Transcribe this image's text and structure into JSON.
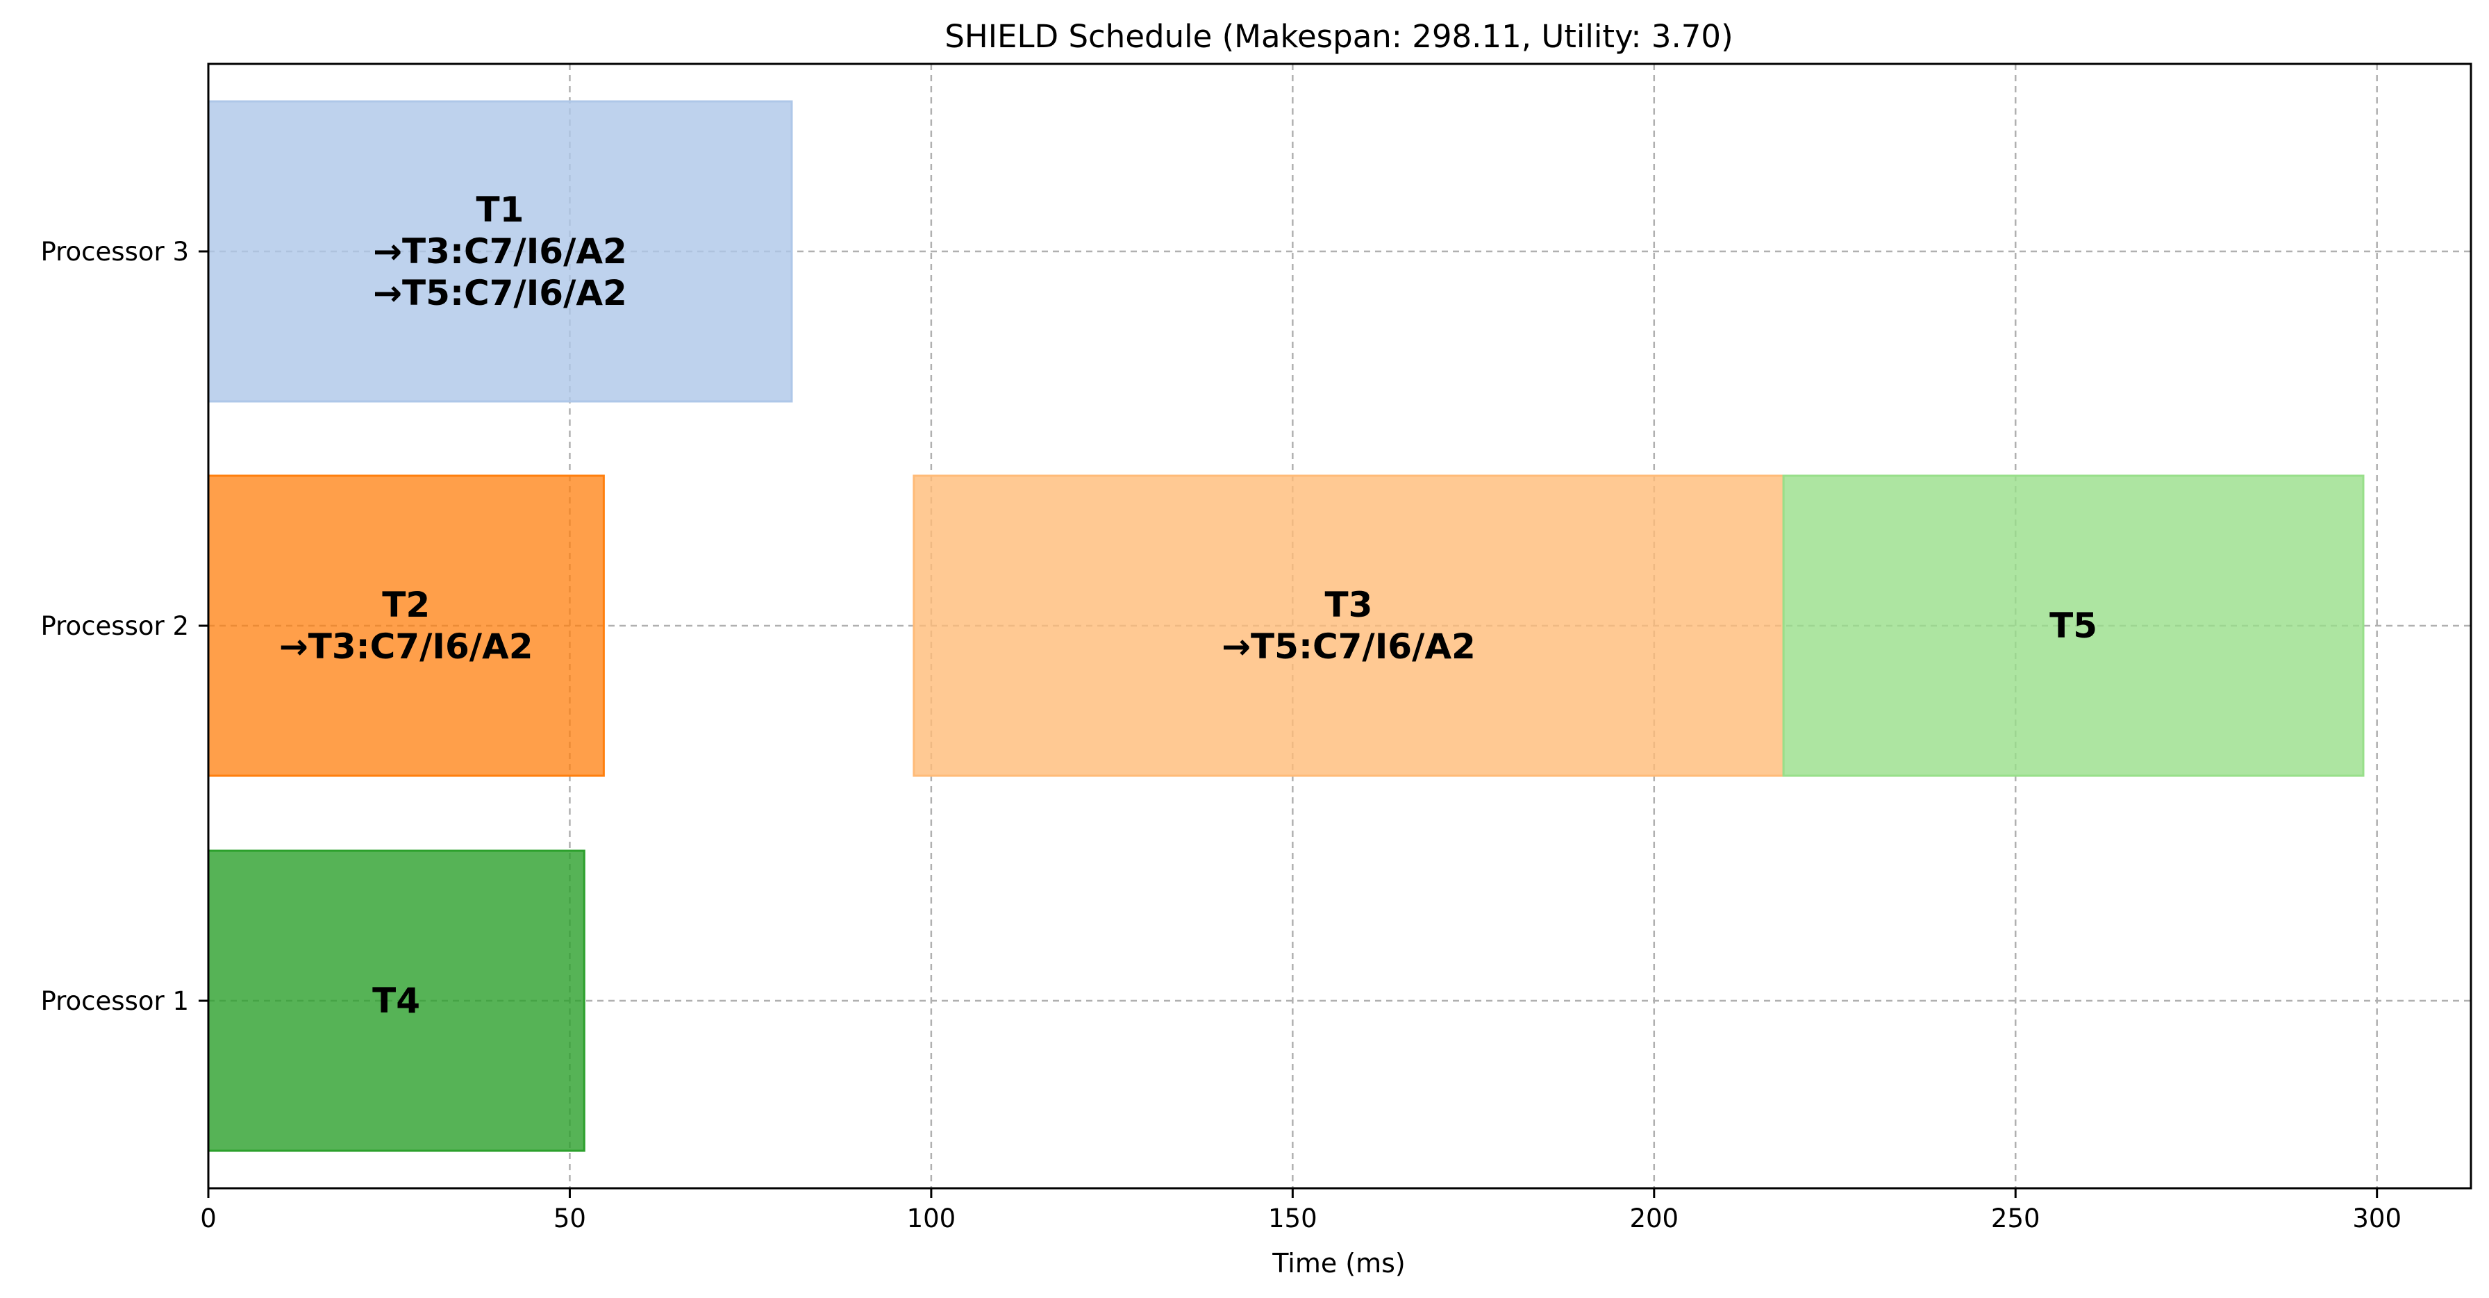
{
  "chart_data": {
    "type": "gantt",
    "title": "SHIELD Schedule (Makespan: 298.11, Utility: 3.70)",
    "xlabel": "Time (ms)",
    "ylabel": "",
    "xlim": [
      0,
      313
    ],
    "xticks": [
      0,
      50,
      100,
      150,
      200,
      250,
      300
    ],
    "categories": [
      "Processor 1",
      "Processor 2",
      "Processor 3"
    ],
    "grid": true,
    "tasks": [
      {
        "processor": "Processor 3",
        "start": 0,
        "end": 80.7,
        "color": "#aec7e8",
        "opacity": 0.8,
        "lines": [
          "T1",
          "→T3:C7/I6/A2",
          "→T5:C7/I6/A2"
        ]
      },
      {
        "processor": "Processor 2",
        "start": 0,
        "end": 54.7,
        "color": "#ff7f0e",
        "opacity": 0.75,
        "lines": [
          "T2",
          "→T3:C7/I6/A2"
        ]
      },
      {
        "processor": "Processor 2",
        "start": 97.6,
        "end": 217.9,
        "color": "#ffbb78",
        "opacity": 0.8,
        "lines": [
          "T3",
          "→T5:C7/I6/A2"
        ]
      },
      {
        "processor": "Processor 2",
        "start": 217.9,
        "end": 298.11,
        "color": "#98df8a",
        "opacity": 0.8,
        "lines": [
          "T5"
        ]
      },
      {
        "processor": "Processor 1",
        "start": 0,
        "end": 52.0,
        "color": "#2ca02c",
        "opacity": 0.8,
        "lines": [
          "T4"
        ]
      }
    ]
  }
}
